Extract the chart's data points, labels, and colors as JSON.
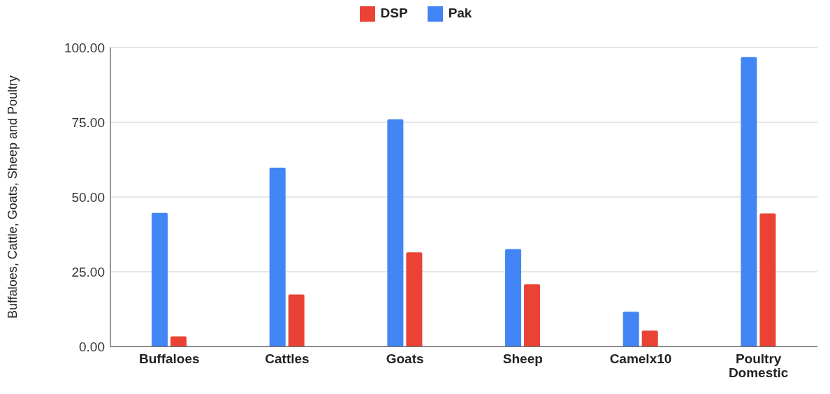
{
  "chart_data": {
    "type": "bar",
    "ylabel": "Buffaloes, Cattle, Goats, Sheep and Poultry",
    "categories": [
      "Buffaloes",
      "Cattles",
      "Goats",
      "Sheep",
      "Camelx10",
      "Poultry Domestic"
    ],
    "series": [
      {
        "name": "Pak",
        "color": "#4285f4",
        "values": [
          44.7,
          59.8,
          76,
          32.6,
          11.6,
          96.8
        ]
      },
      {
        "name": "DSP",
        "color": "#ea4335",
        "values": [
          3.4,
          17.4,
          31.5,
          20.8,
          5.3,
          44.5
        ]
      }
    ],
    "ylim": [
      0,
      100
    ],
    "yticks": [
      {
        "value": 0,
        "label": "0.00"
      },
      {
        "value": 25,
        "label": "25.00"
      },
      {
        "value": 50,
        "label": "50.00"
      },
      {
        "value": 75,
        "label": "75.00"
      },
      {
        "value": 100,
        "label": "100.00"
      }
    ],
    "grid": "y",
    "legend": "top"
  }
}
